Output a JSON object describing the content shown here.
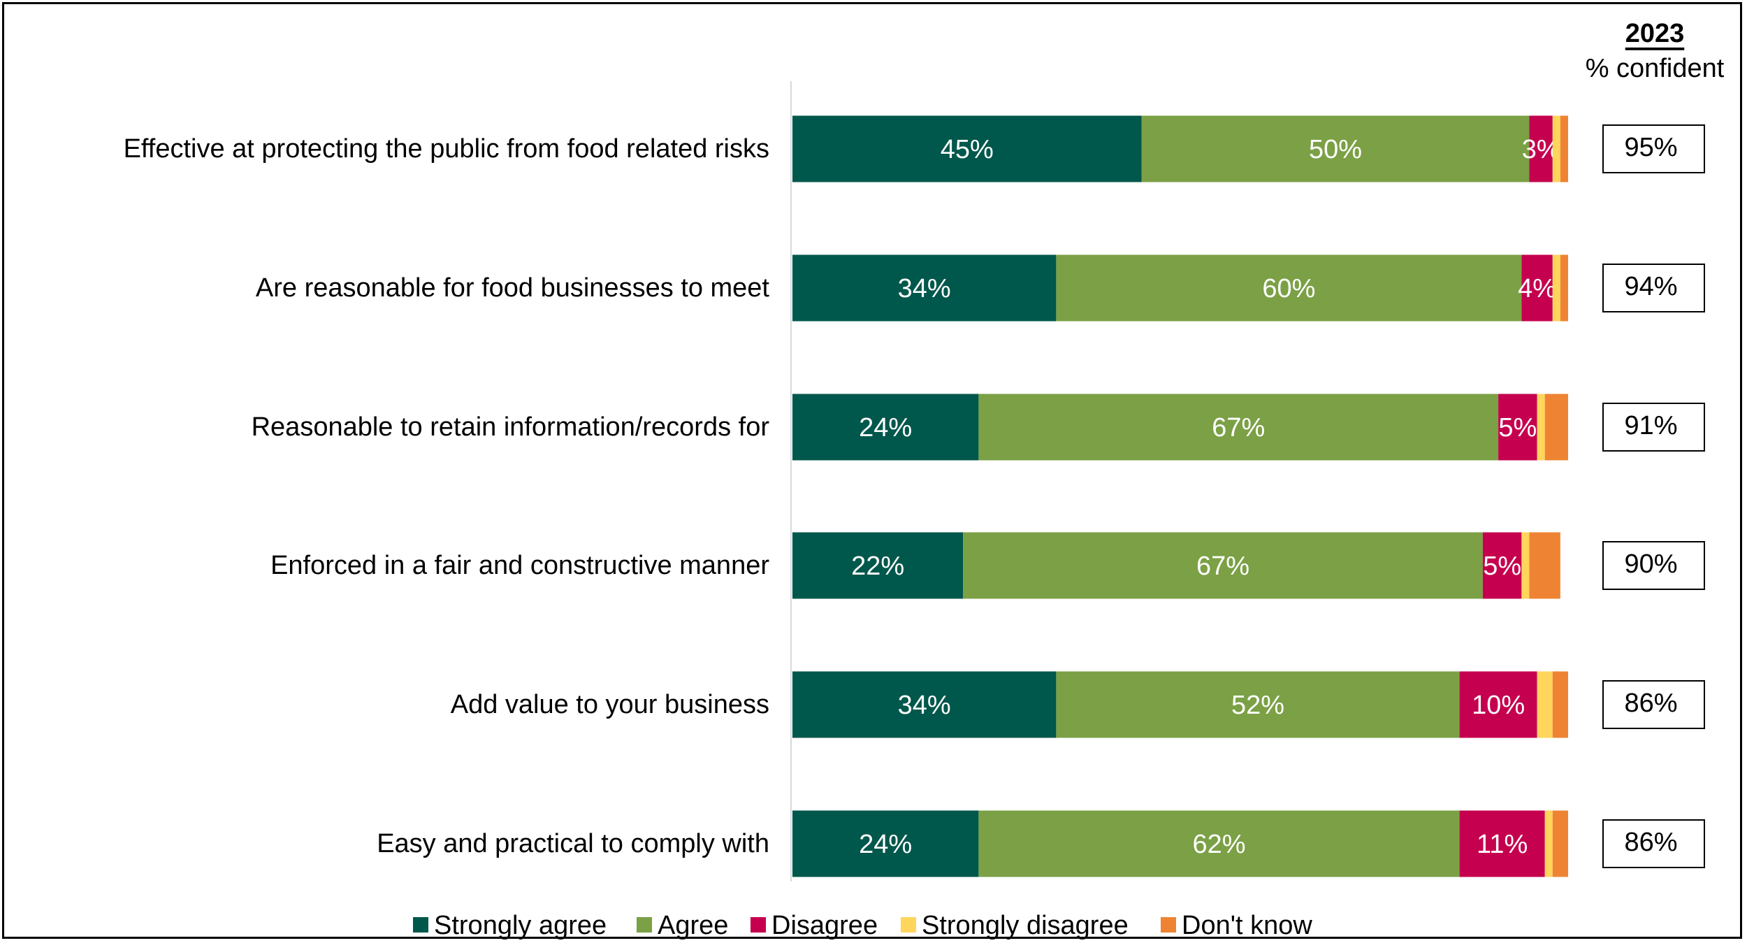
{
  "chart_data": {
    "type": "bar",
    "orientation": "horizontal",
    "stacked": true,
    "categories": [
      "Effective at protecting the public from food related risks",
      "Are reasonable for food businesses to meet",
      "Reasonable to retain information/records for",
      "Enforced in a fair and constructive manner",
      "Add value to your business",
      "Easy and practical to comply with"
    ],
    "series": [
      {
        "name": "Strongly agree",
        "color": "#00574B",
        "values": [
          45,
          34,
          24,
          22,
          34,
          24
        ],
        "labels": [
          "45%",
          "34%",
          "24%",
          "22%",
          "34%",
          "24%"
        ]
      },
      {
        "name": "Agree",
        "color": "#7BA045",
        "values": [
          50,
          60,
          67,
          67,
          52,
          62
        ],
        "labels": [
          "50%",
          "60%",
          "67%",
          "67%",
          "52%",
          "62%"
        ]
      },
      {
        "name": "Disagree",
        "color": "#C5004F",
        "values": [
          3,
          4,
          5,
          5,
          10,
          11
        ],
        "labels": [
          "3%",
          "4%",
          "5%",
          "5%",
          "10%",
          "11%"
        ]
      },
      {
        "name": "Strongly disagree",
        "color": "#FFD55B",
        "values": [
          1,
          1,
          1,
          1,
          2,
          1
        ],
        "labels": [
          "",
          "",
          "",
          "",
          "",
          ""
        ]
      },
      {
        "name": "Don't know",
        "color": "#EE8433",
        "values": [
          1,
          1,
          3,
          4,
          2,
          2
        ],
        "labels": [
          "",
          "",
          "",
          "",
          "",
          ""
        ]
      }
    ],
    "xlim": [
      0,
      100
    ],
    "legend_position": "bottom",
    "side_column": {
      "title": "2023",
      "subtitle": "% confident",
      "values": [
        "95%",
        "94%",
        "91%",
        "90%",
        "86%",
        "86%"
      ]
    }
  }
}
